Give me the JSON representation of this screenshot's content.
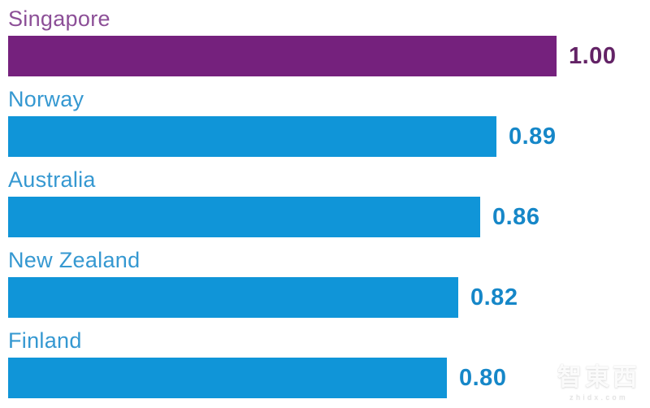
{
  "chart_data": {
    "type": "bar",
    "orientation": "horizontal",
    "title": "",
    "xlabel": "",
    "ylabel": "",
    "xlim": [
      0,
      1.0
    ],
    "grid": false,
    "legend": false,
    "categories": [
      "Singapore",
      "Norway",
      "Australia",
      "New Zealand",
      "Finland"
    ],
    "values": [
      1.0,
      0.89,
      0.86,
      0.82,
      0.8
    ],
    "rows": [
      {
        "label": "Singapore",
        "value": 1.0,
        "value_label": "1.00",
        "bar_color": "#75217d",
        "label_color": "#8c4f97",
        "value_color": "#632366"
      },
      {
        "label": "Norway",
        "value": 0.89,
        "value_label": "0.89",
        "bar_color": "#1095d8",
        "label_color": "#3598d1",
        "value_color": "#1687c8"
      },
      {
        "label": "Australia",
        "value": 0.86,
        "value_label": "0.86",
        "bar_color": "#1095d8",
        "label_color": "#3598d1",
        "value_color": "#1687c8"
      },
      {
        "label": "New Zealand",
        "value": 0.82,
        "value_label": "0.82",
        "bar_color": "#1095d8",
        "label_color": "#3598d1",
        "value_color": "#1687c8"
      },
      {
        "label": "Finland",
        "value": 0.8,
        "value_label": "0.80",
        "bar_color": "#1095d8",
        "label_color": "#3598d1",
        "value_color": "#1687c8"
      }
    ]
  },
  "watermark": {
    "logo_text": "智東西",
    "site_text": "zhidx.com"
  }
}
